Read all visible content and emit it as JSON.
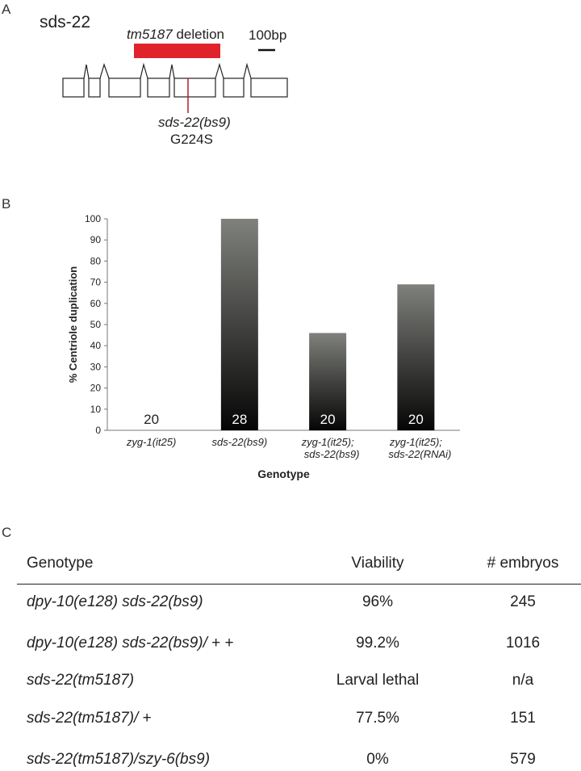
{
  "panelA": {
    "letter": "A",
    "gene": "sds-22",
    "deletion_allele": "tm5187",
    "deletion_word": "deletion",
    "scale_label": "100bp",
    "point_allele": "sds-22(bs9)",
    "mutation": "G224S",
    "colors": {
      "deletion_bar": "#e0232b",
      "mutation_line": "#b0202a"
    }
  },
  "panelB": {
    "letter": "B"
  },
  "chart_data": {
    "type": "bar",
    "categories": [
      [
        "zyg-1(it25)"
      ],
      [
        "sds-22(bs9)"
      ],
      [
        "zyg-1(it25);",
        "sds-22(bs9)"
      ],
      [
        "zyg-1(it25);",
        "sds-22(RNAi)"
      ]
    ],
    "values": [
      0,
      100,
      46,
      69
    ],
    "n_labels": [
      "20",
      "28",
      "20",
      "20"
    ],
    "xlabel": "Genotype",
    "ylabel": "% Centriole duplication",
    "ylim": [
      0,
      100
    ],
    "yticks": [
      "0",
      "10",
      "20",
      "30",
      "40",
      "50",
      "60",
      "70",
      "80",
      "90",
      "100"
    ],
    "grid": false,
    "bar_gradient": {
      "top": "#7f817c",
      "bottom": "#050505"
    }
  },
  "panelC": {
    "letter": "C",
    "headers": {
      "genotype": "Genotype",
      "viability": "Viability",
      "embryos": "# embryos"
    },
    "rows": [
      {
        "genotype_it": "dpy-10(e128) sds-22(bs9)",
        "genotype_rest": "",
        "viability": "96%",
        "embryos": "245"
      },
      {
        "genotype_it": "dpy-10(e128) sds-22(bs9)/",
        "genotype_rest": " + +",
        "viability": "99.2%",
        "embryos": "1016"
      },
      {
        "genotype_it": "sds-22(tm5187)",
        "genotype_rest": "",
        "viability": "Larval lethal",
        "embryos": "n/a"
      },
      {
        "genotype_it": "sds-22(tm5187)/",
        "genotype_rest": " +",
        "viability": "77.5%",
        "embryos": "151"
      },
      {
        "genotype_it": "sds-22(tm5187)/szy-6(bs9)",
        "genotype_rest": "",
        "viability": "0%",
        "embryos": "579"
      }
    ]
  }
}
